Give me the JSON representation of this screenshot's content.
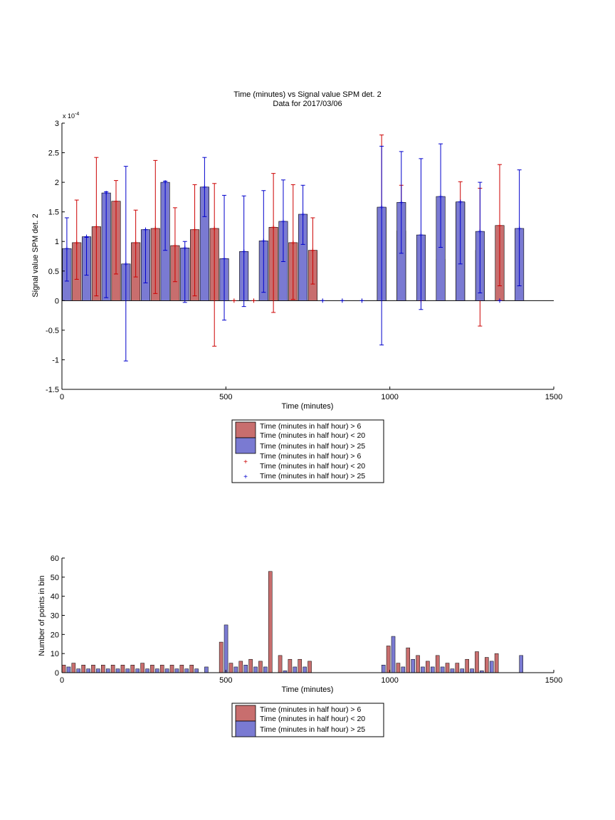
{
  "chart_data": [
    {
      "type": "bar",
      "title": "Time (minutes) vs Signal value SPM det. 2",
      "subtitle": "Data for 2017/03/06",
      "xlabel": "Time (minutes)",
      "ylabel": "Signal value SPM det. 2",
      "y_exponent": "x 10",
      "y_exponent_power": "-4",
      "xlim": [
        0,
        1500
      ],
      "ylim": [
        -1.5,
        3
      ],
      "xticks": [
        "0",
        "500",
        "1000",
        "1500"
      ],
      "yticks": [
        "-1.5",
        "-1",
        "-0.5",
        "0",
        "0.5",
        "1",
        "1.5",
        "2",
        "2.5",
        "3"
      ],
      "grid": false,
      "legend_placement": "below",
      "legend": [
        {
          "label_lines": [
            "Time (minutes in half hour) > 6",
            "Time (minutes in half hour) < 20"
          ],
          "marker": "red-bar"
        },
        {
          "label_lines": [
            "Time (minutes in half hour) > 25"
          ],
          "marker": "blue-bar"
        },
        {
          "label_lines": [
            "Time (minutes in half hour) > 6",
            "Time (minutes in half hour) < 20"
          ],
          "marker": "red-plus"
        },
        {
          "label_lines": [
            "Time (minutes in half hour) > 25"
          ],
          "marker": "blue-plus"
        }
      ],
      "series": [
        {
          "color": "#c86e6e",
          "err_color": "#cc0000",
          "x": [
            45,
            105,
            165,
            225,
            285,
            345,
            405,
            465,
            525,
            585,
            645,
            705,
            765,
            975,
            1035,
            1095,
            1155,
            1215,
            1275,
            1335
          ],
          "values": [
            0.98,
            1.25,
            1.68,
            0.98,
            1.22,
            0.93,
            1.2,
            1.22,
            0,
            0,
            1.24,
            0.98,
            0.85,
            1.57,
            1.18,
            0,
            0.7,
            1.66,
            0.85,
            1.27
          ],
          "err_low": [
            0.36,
            0.08,
            0.45,
            0.4,
            0.12,
            0.32,
            0.08,
            -0.77,
            0,
            0,
            -0.2,
            0.02,
            0.28,
            0.35,
            0.45,
            0,
            0.03,
            0.42,
            -0.43,
            0.25
          ],
          "err_high": [
            1.7,
            2.42,
            2.03,
            1.53,
            2.37,
            1.57,
            1.96,
            1.98,
            0,
            0,
            2.15,
            1.96,
            1.4,
            2.8,
            1.95,
            0,
            1.68,
            2.01,
            1.9,
            2.3
          ]
        },
        {
          "color": "#7a7ad2",
          "err_color": "#0000cc",
          "x": [
            15,
            75,
            135,
            195,
            255,
            315,
            375,
            435,
            495,
            555,
            615,
            675,
            735,
            795,
            855,
            915,
            975,
            1035,
            1095,
            1155,
            1215,
            1275,
            1335,
            1395
          ],
          "values": [
            0.88,
            1.08,
            1.82,
            0.62,
            1.2,
            2.0,
            0.89,
            1.92,
            0.71,
            0.83,
            1.01,
            1.34,
            1.46,
            0,
            0,
            0,
            1.58,
            1.66,
            1.11,
            1.76,
            1.67,
            1.17,
            0,
            1.22
          ],
          "err_low": [
            0.33,
            0.43,
            0.05,
            -1.02,
            0.3,
            0.85,
            -0.03,
            1.42,
            -0.33,
            -0.1,
            0.14,
            0.66,
            0.95,
            0,
            0,
            0,
            -0.75,
            0.8,
            -0.15,
            0.9,
            0.62,
            0.13,
            0,
            0.25
          ],
          "err_high": [
            1.4,
            1.07,
            1.84,
            2.27,
            1.2,
            2.02,
            1.0,
            2.42,
            1.78,
            1.77,
            1.86,
            2.04,
            1.95,
            0,
            0,
            0,
            2.61,
            2.52,
            2.4,
            2.65,
            1.67,
            2.0,
            0,
            2.21
          ]
        }
      ]
    },
    {
      "type": "bar",
      "xlabel": "Time (minutes)",
      "ylabel": "Number of points in bin",
      "xlim": [
        0,
        1500
      ],
      "ylim": [
        0,
        60
      ],
      "xticks": [
        "0",
        "500",
        "1000",
        "1500"
      ],
      "yticks": [
        "0",
        "10",
        "20",
        "30",
        "40",
        "50",
        "60"
      ],
      "grid": false,
      "legend_placement": "below",
      "legend": [
        {
          "label_lines": [
            "Time (minutes in half hour) > 6",
            "Time (minutes in half hour) < 20"
          ],
          "marker": "red-bar"
        },
        {
          "label_lines": [
            "Time (minutes in half hour) > 25"
          ],
          "marker": "blue-bar"
        }
      ],
      "series": [
        {
          "color": "#c86e6e",
          "x": [
            0,
            30,
            60,
            90,
            120,
            150,
            180,
            210,
            240,
            270,
            300,
            330,
            360,
            390,
            480,
            510,
            540,
            570,
            600,
            630,
            660,
            690,
            720,
            750,
            990,
            1020,
            1050,
            1080,
            1110,
            1140,
            1170,
            1200,
            1230,
            1260,
            1290,
            1320
          ],
          "values": [
            4,
            5,
            4,
            4,
            4,
            4,
            4,
            4,
            5,
            4,
            4,
            4,
            4,
            4,
            16,
            5,
            6,
            7,
            6,
            53,
            9,
            7,
            7,
            6,
            14,
            5,
            13,
            9,
            6,
            9,
            5,
            5,
            7,
            11,
            8,
            10
          ]
        },
        {
          "color": "#7a7ad2",
          "x": [
            15,
            45,
            75,
            105,
            135,
            165,
            195,
            225,
            255,
            285,
            315,
            345,
            375,
            405,
            435,
            495,
            525,
            555,
            585,
            615,
            675,
            705,
            735,
            975,
            1005,
            1035,
            1065,
            1095,
            1125,
            1155,
            1185,
            1215,
            1245,
            1275,
            1305,
            1395
          ],
          "values": [
            3,
            2,
            2,
            2,
            2,
            2,
            2,
            2,
            2,
            2,
            2,
            2,
            2,
            2,
            3,
            25,
            3,
            4,
            3,
            3,
            1,
            3,
            3,
            4,
            19,
            3,
            7,
            3,
            3,
            3,
            2,
            2,
            2,
            1,
            6,
            9
          ]
        }
      ]
    }
  ]
}
